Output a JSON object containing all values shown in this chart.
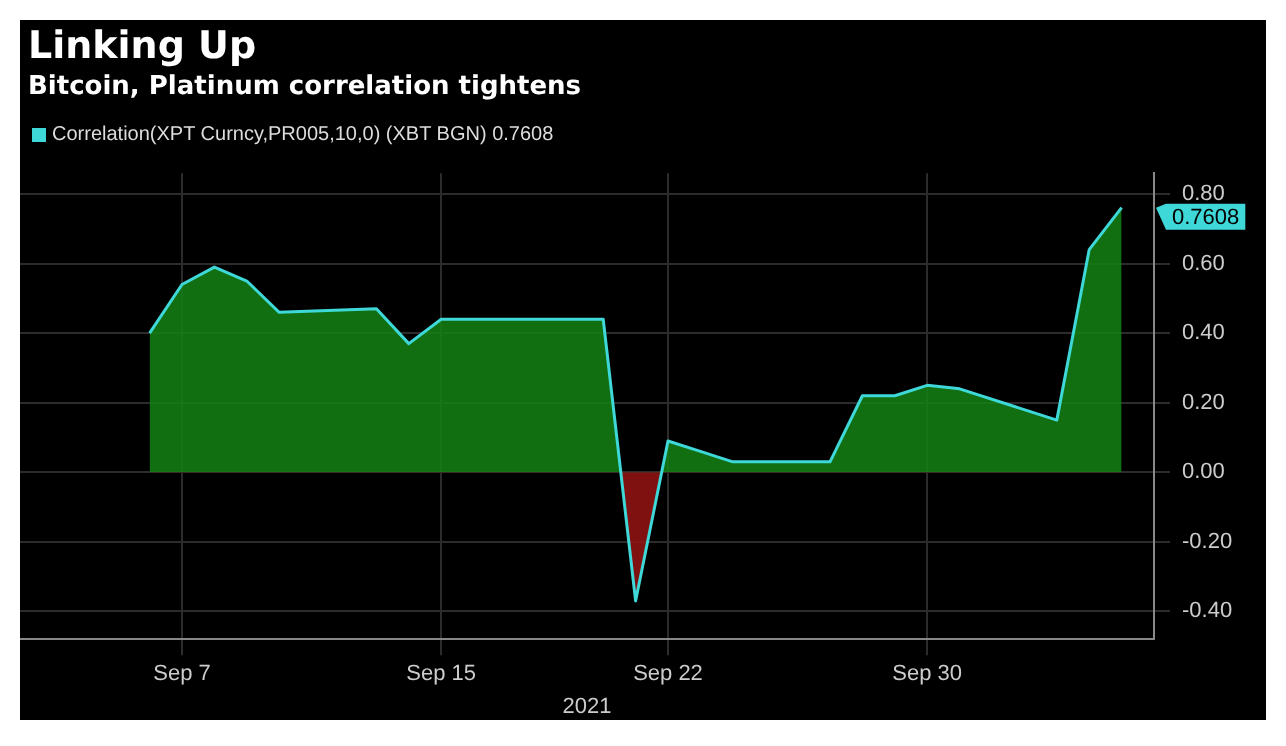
{
  "chart_data": {
    "type": "area",
    "title": "Linking Up",
    "subtitle": "Bitcoin, Platinum correlation tightens",
    "xlabel": "2021",
    "x": [
      "2021-09-06",
      "2021-09-07",
      "2021-09-08",
      "2021-09-09",
      "2021-09-10",
      "2021-09-13",
      "2021-09-14",
      "2021-09-15",
      "2021-09-16",
      "2021-09-17",
      "2021-09-20",
      "2021-09-21",
      "2021-09-22",
      "2021-09-23",
      "2021-09-24",
      "2021-09-27",
      "2021-09-28",
      "2021-09-29",
      "2021-09-30",
      "2021-10-01",
      "2021-10-04",
      "2021-10-05",
      "2021-10-06"
    ],
    "series": [
      {
        "name": "Correlation(XPT Curncy,PR005,10,0) (XBT BGN) 0.7608",
        "color": "#3fd8d8",
        "values": [
          0.4,
          0.54,
          0.59,
          0.55,
          0.46,
          0.47,
          0.37,
          0.44,
          0.44,
          0.44,
          0.44,
          -0.37,
          0.09,
          0.06,
          0.03,
          0.03,
          0.22,
          0.22,
          0.25,
          0.24,
          0.15,
          0.64,
          0.7608
        ]
      }
    ],
    "xlim": [
      "2021-09-02",
      "2021-10-07"
    ],
    "xticks": [
      {
        "value": "2021-09-07",
        "label": "Sep 7"
      },
      {
        "value": "2021-09-15",
        "label": "Sep 15"
      },
      {
        "value": "2021-09-22",
        "label": "Sep 22"
      },
      {
        "value": "2021-09-30",
        "label": "Sep 30"
      }
    ],
    "ylim": [
      -0.48,
      0.86
    ],
    "yticks": [
      {
        "value": -0.4,
        "label": "-0.40"
      },
      {
        "value": -0.2,
        "label": "-0.20"
      },
      {
        "value": 0,
        "label": "0.00"
      },
      {
        "value": 0.2,
        "label": "0.20"
      },
      {
        "value": 0.4,
        "label": "0.40"
      },
      {
        "value": 0.6,
        "label": "0.60"
      },
      {
        "value": 0.8,
        "label": "0.80"
      }
    ],
    "annotations": [
      {
        "text": "0.7608",
        "x": "2021-10-06",
        "y": 0.7608
      }
    ],
    "grid": true,
    "legend": "top left"
  }
}
